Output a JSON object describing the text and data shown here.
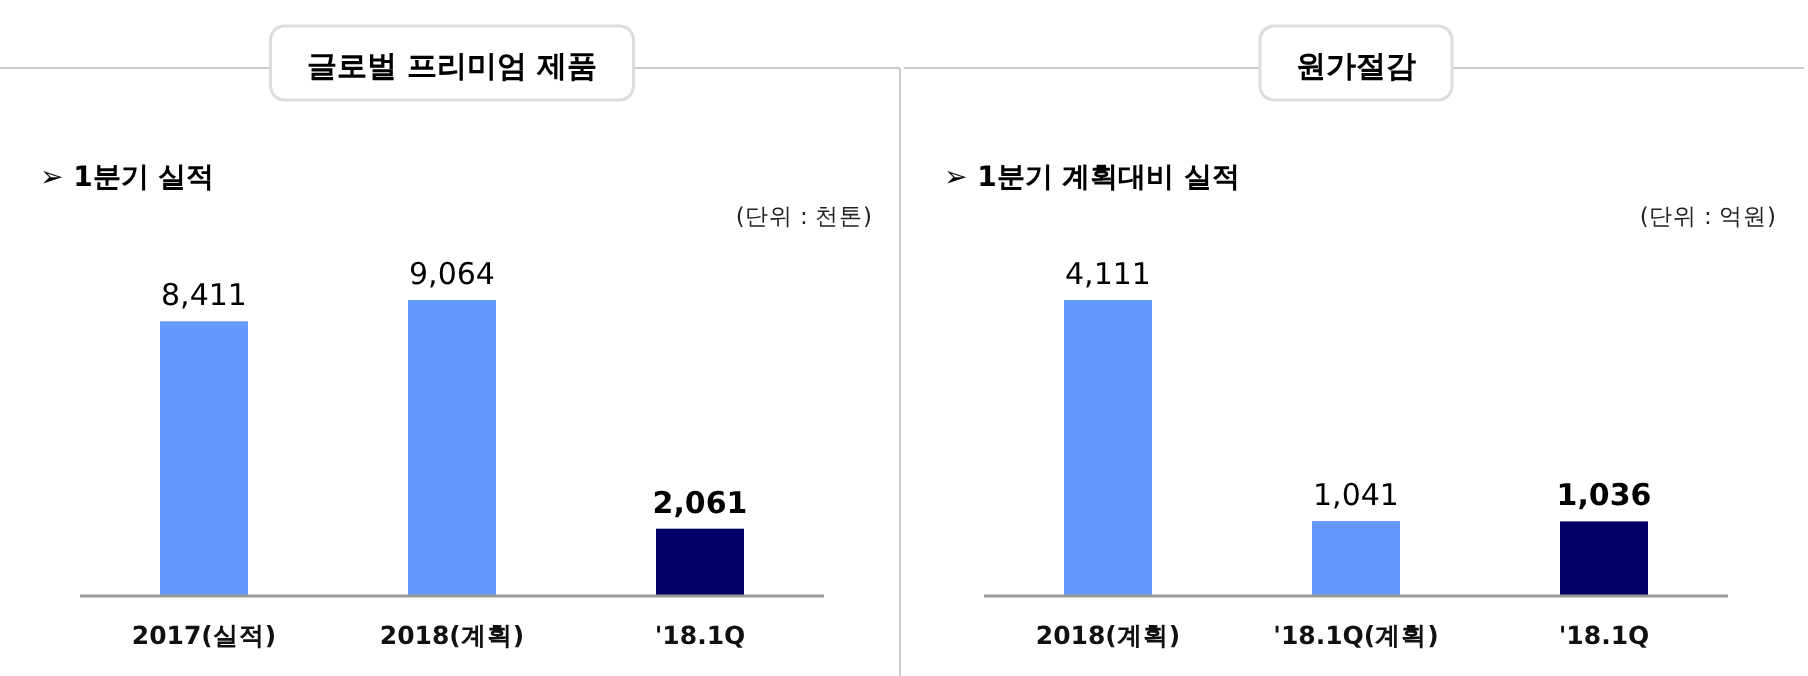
{
  "chart_data": [
    {
      "type": "bar",
      "title": "글로벌 프리미엄 제품",
      "subtitle": "➢ 1분기 실적",
      "annotations": [
        "(단위 : 천톤)"
      ],
      "categories": [
        "2017(실적)",
        "2018(계획)",
        "'18.1Q"
      ],
      "values": [
        8411,
        9064,
        2061
      ],
      "value_labels": [
        "8,411",
        "9,064",
        "2,061"
      ],
      "colors": [
        "#6699ff",
        "#6699ff",
        "#000066"
      ]
    },
    {
      "type": "bar",
      "title": "원가절감",
      "subtitle": "➢ 1분기 계획대비 실적",
      "annotations": [
        "(단위 : 억원)"
      ],
      "categories": [
        "2018(계획)",
        "'18.1Q(계획)",
        "'18.1Q"
      ],
      "values": [
        4111,
        1041,
        1036
      ],
      "value_labels": [
        "4,111",
        "1,041",
        "1,036"
      ],
      "colors": [
        "#6699ff",
        "#6699ff",
        "#000066"
      ]
    }
  ]
}
